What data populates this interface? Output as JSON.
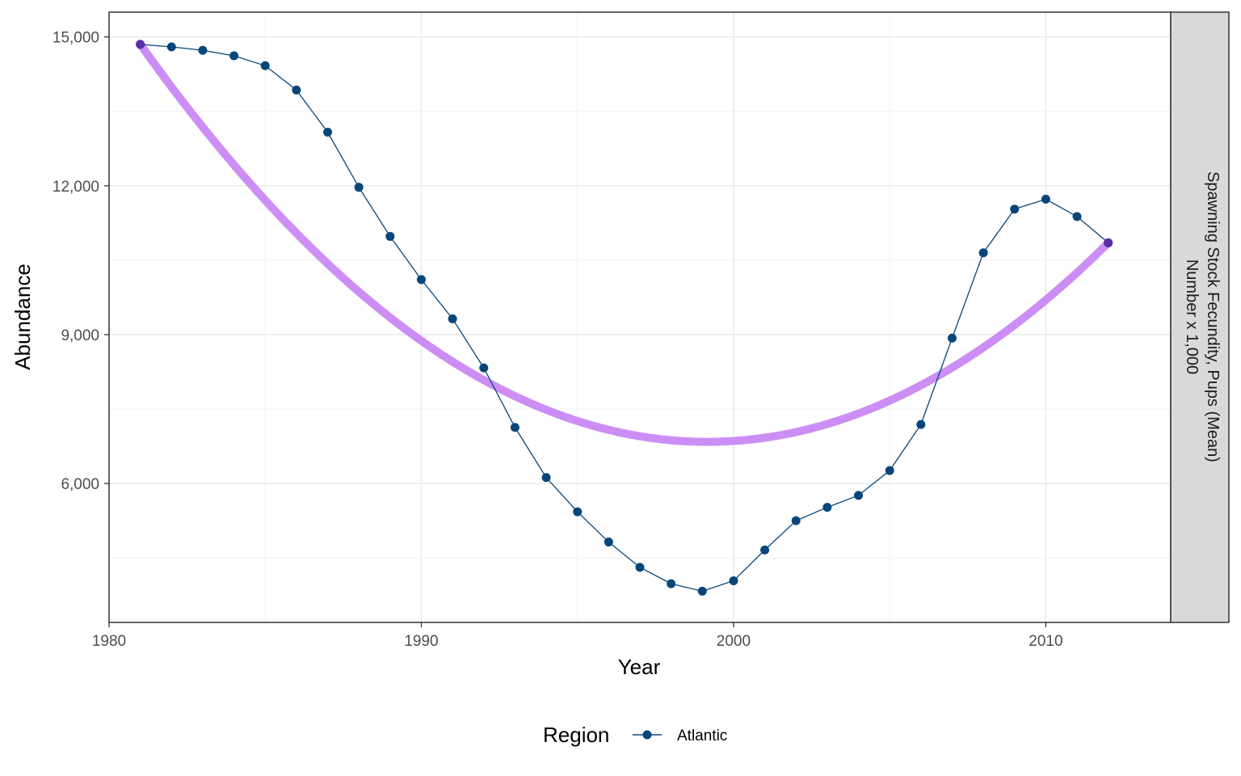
{
  "chart_data": {
    "type": "line",
    "xlabel": "Year",
    "ylabel": "Abundance",
    "xlim": [
      1980,
      2014
    ],
    "ylim": [
      3200,
      15500
    ],
    "x_ticks": [
      1980,
      1990,
      2000,
      2010
    ],
    "x_tick_labels": [
      "1980",
      "1990",
      "2000",
      "2010"
    ],
    "y_ticks": [
      6000,
      9000,
      12000,
      15000
    ],
    "y_tick_labels": [
      "6,000",
      "9,000",
      "12,000",
      "15,000"
    ],
    "grid": true,
    "facet_strip": {
      "line1": "Spawning Stock Fecundity, Pups (Mean)",
      "line2": "Number x 1,000"
    },
    "legend": {
      "title": "Region",
      "placement": "bottom",
      "entries": [
        "Atlantic"
      ]
    },
    "series": [
      {
        "name": "Atlantic",
        "color": "#08467a",
        "x": [
          1981,
          1982,
          1983,
          1984,
          1985,
          1986,
          1987,
          1988,
          1989,
          1990,
          1991,
          1992,
          1993,
          1994,
          1995,
          1996,
          1997,
          1998,
          1999,
          2000,
          2001,
          2002,
          2003,
          2004,
          2005,
          2006,
          2007,
          2008,
          2009,
          2010,
          2011,
          2012
        ],
        "values": [
          14850,
          14800,
          14730,
          14620,
          14420,
          13930,
          13080,
          11970,
          10980,
          10110,
          9320,
          8330,
          7130,
          6120,
          5430,
          4820,
          4310,
          3980,
          3830,
          4040,
          4660,
          5250,
          5520,
          5760,
          6260,
          7190,
          8930,
          10650,
          11530,
          11730,
          11380,
          10850
        ]
      }
    ],
    "trend": {
      "color": "#cc8ef5",
      "endpoint_color": "#5b2fa8",
      "points": [
        {
          "x": 1981,
          "y": 14850
        },
        {
          "x": 1999.3,
          "y": 6840
        },
        {
          "x": 2012,
          "y": 10850
        }
      ]
    }
  }
}
